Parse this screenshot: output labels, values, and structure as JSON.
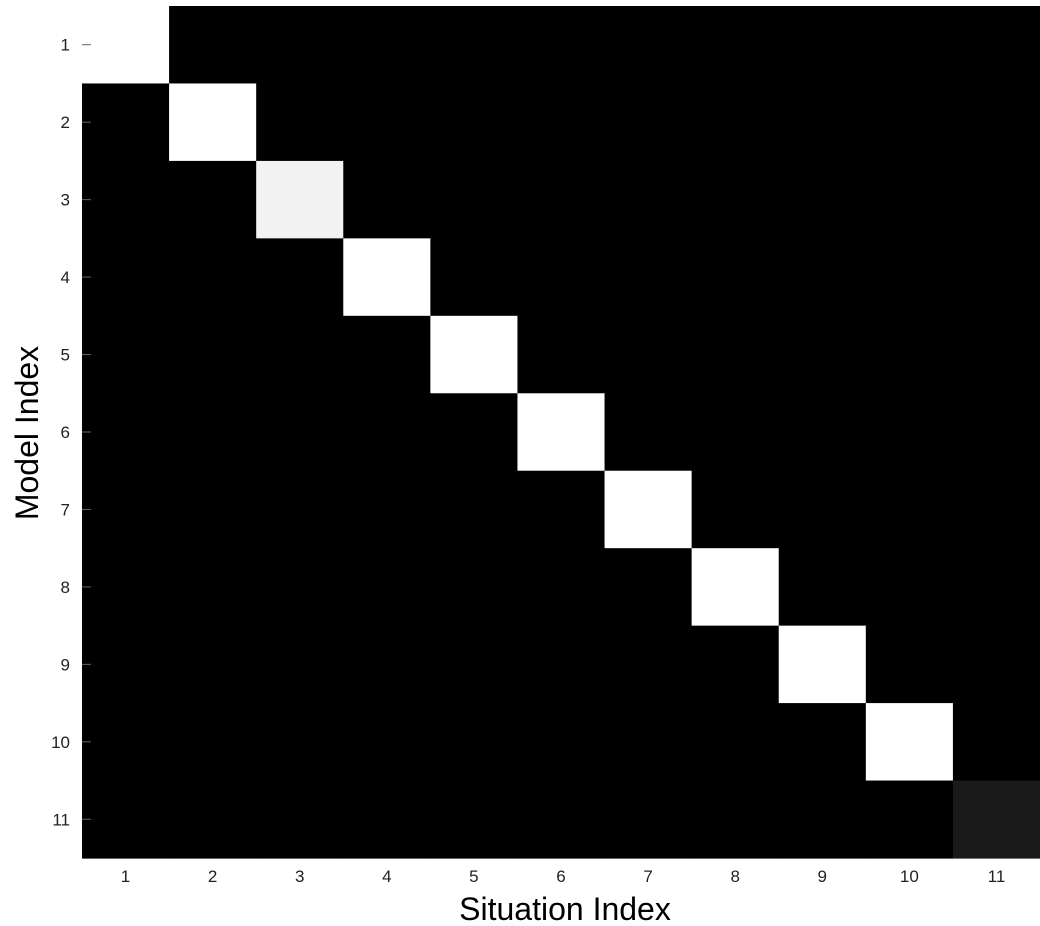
{
  "chart_data": {
    "type": "heatmap",
    "title": "",
    "xlabel": "Situation Index",
    "ylabel": "Model Index",
    "x_categories": [
      "1",
      "2",
      "3",
      "4",
      "5",
      "6",
      "7",
      "8",
      "9",
      "10",
      "11"
    ],
    "y_categories": [
      "1",
      "2",
      "3",
      "4",
      "5",
      "6",
      "7",
      "8",
      "9",
      "10",
      "11"
    ],
    "colormap": "gray",
    "value_range": [
      0,
      1
    ],
    "grid": false,
    "legend": "none",
    "values": [
      [
        1,
        0,
        0,
        0,
        0,
        0,
        0,
        0,
        0,
        0,
        0
      ],
      [
        0,
        1,
        0,
        0,
        0,
        0,
        0,
        0,
        0,
        0,
        0
      ],
      [
        0,
        0,
        0.95,
        0,
        0,
        0,
        0,
        0,
        0,
        0,
        0
      ],
      [
        0,
        0,
        0,
        1,
        0,
        0,
        0,
        0,
        0,
        0,
        0
      ],
      [
        0,
        0,
        0,
        0,
        1,
        0,
        0,
        0,
        0,
        0,
        0
      ],
      [
        0,
        0,
        0,
        0,
        0,
        1,
        0,
        0,
        0,
        0,
        0
      ],
      [
        0,
        0,
        0,
        0,
        0,
        0,
        1,
        0,
        0,
        0,
        0
      ],
      [
        0,
        0,
        0,
        0,
        0,
        0,
        0,
        1,
        0,
        0,
        0
      ],
      [
        0,
        0,
        0,
        0,
        0,
        0,
        0,
        0,
        1,
        0,
        0
      ],
      [
        0,
        0,
        0,
        0,
        0,
        0,
        0,
        0,
        0,
        1,
        0
      ],
      [
        0,
        0,
        0,
        0,
        0,
        0,
        0,
        0,
        0,
        0,
        0.1
      ]
    ]
  }
}
